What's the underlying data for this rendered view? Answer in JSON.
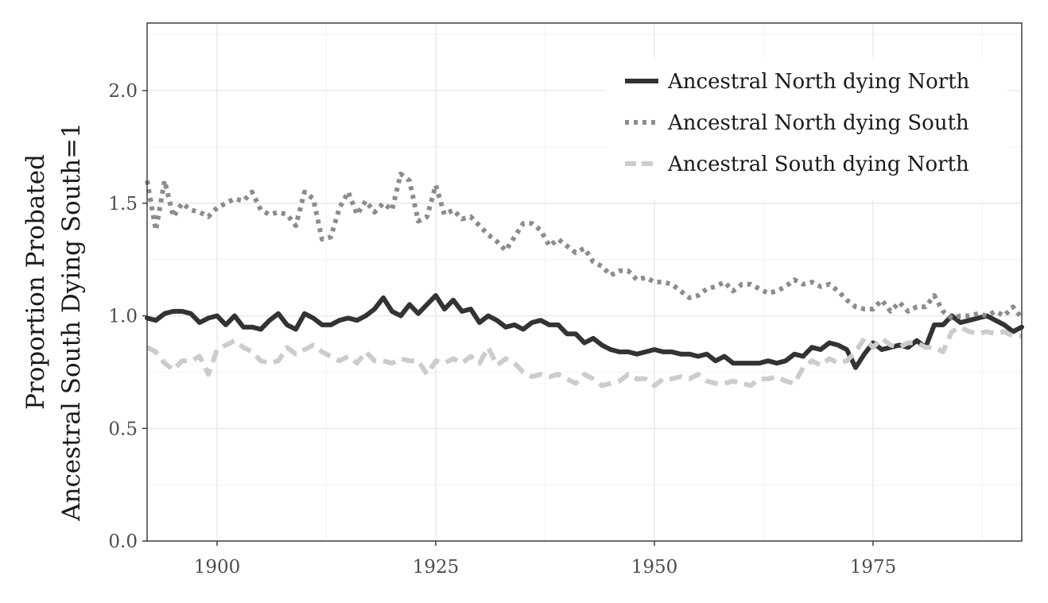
{
  "chart_data": {
    "type": "line",
    "title": "",
    "xlabel": "",
    "ylabel_lines": [
      "Proportion Probated",
      "Ancestral South Dying South=1"
    ],
    "xlim": [
      1892,
      1992
    ],
    "ylim": [
      0,
      2.3
    ],
    "x_ticks": [
      1900,
      1925,
      1950,
      1975
    ],
    "x_tick_labels": [
      "1900",
      "1925",
      "1950",
      "1975"
    ],
    "y_ticks": [
      0,
      0.5,
      1,
      1.5,
      2
    ],
    "y_tick_labels": [
      "0.0",
      "0.5",
      "1.0",
      "1.5",
      "2.0"
    ],
    "grid": true,
    "legend_position": "top-right",
    "series": [
      {
        "name": "Ancestral North dying North",
        "color": "#333333",
        "dash": "solid",
        "points": [
          [
            1892,
            0.99
          ],
          [
            1893,
            0.98
          ],
          [
            1894,
            1.01
          ],
          [
            1895,
            1.02
          ],
          [
            1896,
            1.02
          ],
          [
            1897,
            1.01
          ],
          [
            1898,
            0.97
          ],
          [
            1899,
            0.99
          ],
          [
            1900,
            1.0
          ],
          [
            1901,
            0.96
          ],
          [
            1902,
            1.0
          ],
          [
            1903,
            0.95
          ],
          [
            1904,
            0.95
          ],
          [
            1905,
            0.94
          ],
          [
            1906,
            0.98
          ],
          [
            1907,
            1.01
          ],
          [
            1908,
            0.96
          ],
          [
            1909,
            0.94
          ],
          [
            1910,
            1.01
          ],
          [
            1911,
            0.99
          ],
          [
            1912,
            0.96
          ],
          [
            1913,
            0.96
          ],
          [
            1914,
            0.98
          ],
          [
            1915,
            0.99
          ],
          [
            1916,
            0.98
          ],
          [
            1917,
            1.0
          ],
          [
            1918,
            1.03
          ],
          [
            1919,
            1.08
          ],
          [
            1920,
            1.02
          ],
          [
            1921,
            1.0
          ],
          [
            1922,
            1.05
          ],
          [
            1923,
            1.01
          ],
          [
            1924,
            1.05
          ],
          [
            1925,
            1.09
          ],
          [
            1926,
            1.03
          ],
          [
            1927,
            1.07
          ],
          [
            1928,
            1.02
          ],
          [
            1929,
            1.03
          ],
          [
            1930,
            0.97
          ],
          [
            1931,
            1.0
          ],
          [
            1932,
            0.98
          ],
          [
            1933,
            0.95
          ],
          [
            1934,
            0.96
          ],
          [
            1935,
            0.94
          ],
          [
            1936,
            0.97
          ],
          [
            1937,
            0.98
          ],
          [
            1938,
            0.96
          ],
          [
            1939,
            0.96
          ],
          [
            1940,
            0.92
          ],
          [
            1941,
            0.92
          ],
          [
            1942,
            0.88
          ],
          [
            1943,
            0.9
          ],
          [
            1944,
            0.87
          ],
          [
            1945,
            0.85
          ],
          [
            1946,
            0.84
          ],
          [
            1947,
            0.84
          ],
          [
            1948,
            0.83
          ],
          [
            1949,
            0.84
          ],
          [
            1950,
            0.85
          ],
          [
            1951,
            0.84
          ],
          [
            1952,
            0.84
          ],
          [
            1953,
            0.83
          ],
          [
            1954,
            0.83
          ],
          [
            1955,
            0.82
          ],
          [
            1956,
            0.83
          ],
          [
            1957,
            0.8
          ],
          [
            1958,
            0.82
          ],
          [
            1959,
            0.79
          ],
          [
            1960,
            0.79
          ],
          [
            1961,
            0.79
          ],
          [
            1962,
            0.79
          ],
          [
            1963,
            0.8
          ],
          [
            1964,
            0.79
          ],
          [
            1965,
            0.8
          ],
          [
            1966,
            0.83
          ],
          [
            1967,
            0.82
          ],
          [
            1968,
            0.86
          ],
          [
            1969,
            0.85
          ],
          [
            1970,
            0.88
          ],
          [
            1971,
            0.87
          ],
          [
            1972,
            0.85
          ],
          [
            1973,
            0.77
          ],
          [
            1974,
            0.83
          ],
          [
            1975,
            0.88
          ],
          [
            1976,
            0.85
          ],
          [
            1977,
            0.86
          ],
          [
            1978,
            0.87
          ],
          [
            1979,
            0.86
          ],
          [
            1980,
            0.89
          ],
          [
            1981,
            0.86
          ],
          [
            1982,
            0.96
          ],
          [
            1983,
            0.96
          ],
          [
            1984,
            1.0
          ],
          [
            1985,
            0.97
          ],
          [
            1986,
            0.98
          ],
          [
            1987,
            0.99
          ],
          [
            1988,
            1.0
          ],
          [
            1989,
            0.98
          ],
          [
            1990,
            0.96
          ],
          [
            1991,
            0.93
          ],
          [
            1992,
            0.95
          ]
        ]
      },
      {
        "name": "Ancestral North dying South",
        "color": "#8c8c8c",
        "dash": "dotted",
        "points": [
          [
            1892,
            1.6
          ],
          [
            1893,
            1.38
          ],
          [
            1894,
            1.6
          ],
          [
            1895,
            1.44
          ],
          [
            1896,
            1.5
          ],
          [
            1897,
            1.47
          ],
          [
            1898,
            1.46
          ],
          [
            1899,
            1.44
          ],
          [
            1900,
            1.48
          ],
          [
            1901,
            1.5
          ],
          [
            1902,
            1.52
          ],
          [
            1903,
            1.51
          ],
          [
            1904,
            1.55
          ],
          [
            1905,
            1.47
          ],
          [
            1906,
            1.45
          ],
          [
            1907,
            1.46
          ],
          [
            1908,
            1.45
          ],
          [
            1909,
            1.4
          ],
          [
            1910,
            1.55
          ],
          [
            1911,
            1.52
          ],
          [
            1912,
            1.34
          ],
          [
            1913,
            1.35
          ],
          [
            1914,
            1.48
          ],
          [
            1915,
            1.55
          ],
          [
            1916,
            1.45
          ],
          [
            1917,
            1.51
          ],
          [
            1918,
            1.46
          ],
          [
            1919,
            1.5
          ],
          [
            1920,
            1.47
          ],
          [
            1921,
            1.63
          ],
          [
            1922,
            1.6
          ],
          [
            1923,
            1.42
          ],
          [
            1924,
            1.44
          ],
          [
            1925,
            1.58
          ],
          [
            1926,
            1.45
          ],
          [
            1927,
            1.47
          ],
          [
            1928,
            1.43
          ],
          [
            1929,
            1.44
          ],
          [
            1930,
            1.4
          ],
          [
            1931,
            1.36
          ],
          [
            1932,
            1.33
          ],
          [
            1933,
            1.29
          ],
          [
            1934,
            1.35
          ],
          [
            1935,
            1.41
          ],
          [
            1936,
            1.41
          ],
          [
            1937,
            1.38
          ],
          [
            1938,
            1.31
          ],
          [
            1939,
            1.34
          ],
          [
            1940,
            1.31
          ],
          [
            1941,
            1.28
          ],
          [
            1942,
            1.3
          ],
          [
            1943,
            1.24
          ],
          [
            1944,
            1.22
          ],
          [
            1945,
            1.18
          ],
          [
            1946,
            1.2
          ],
          [
            1947,
            1.2
          ],
          [
            1948,
            1.16
          ],
          [
            1949,
            1.17
          ],
          [
            1950,
            1.15
          ],
          [
            1951,
            1.15
          ],
          [
            1952,
            1.14
          ],
          [
            1953,
            1.11
          ],
          [
            1954,
            1.08
          ],
          [
            1955,
            1.09
          ],
          [
            1956,
            1.12
          ],
          [
            1957,
            1.13
          ],
          [
            1958,
            1.15
          ],
          [
            1959,
            1.11
          ],
          [
            1960,
            1.14
          ],
          [
            1961,
            1.14
          ],
          [
            1962,
            1.12
          ],
          [
            1963,
            1.1
          ],
          [
            1964,
            1.11
          ],
          [
            1965,
            1.13
          ],
          [
            1966,
            1.16
          ],
          [
            1967,
            1.14
          ],
          [
            1968,
            1.15
          ],
          [
            1969,
            1.13
          ],
          [
            1970,
            1.14
          ],
          [
            1971,
            1.11
          ],
          [
            1972,
            1.07
          ],
          [
            1973,
            1.04
          ],
          [
            1974,
            1.03
          ],
          [
            1975,
            1.03
          ],
          [
            1976,
            1.07
          ],
          [
            1977,
            1.02
          ],
          [
            1978,
            1.06
          ],
          [
            1979,
            1.02
          ],
          [
            1980,
            1.04
          ],
          [
            1981,
            1.04
          ],
          [
            1982,
            1.09
          ],
          [
            1983,
            1.02
          ],
          [
            1984,
            0.99
          ],
          [
            1985,
            1.0
          ],
          [
            1986,
            1.0
          ],
          [
            1987,
            1.01
          ],
          [
            1988,
            1.0
          ],
          [
            1989,
            1.02
          ],
          [
            1990,
            1.0
          ],
          [
            1991,
            1.04
          ],
          [
            1992,
            0.99
          ]
        ]
      },
      {
        "name": "Ancestral South dying North",
        "color": "#cccccc",
        "dash": "dashed",
        "points": [
          [
            1892,
            0.86
          ],
          [
            1893,
            0.84
          ],
          [
            1894,
            0.79
          ],
          [
            1895,
            0.76
          ],
          [
            1896,
            0.8
          ],
          [
            1897,
            0.8
          ],
          [
            1898,
            0.82
          ],
          [
            1899,
            0.74
          ],
          [
            1900,
            0.85
          ],
          [
            1901,
            0.87
          ],
          [
            1902,
            0.89
          ],
          [
            1903,
            0.86
          ],
          [
            1904,
            0.84
          ],
          [
            1905,
            0.8
          ],
          [
            1906,
            0.79
          ],
          [
            1907,
            0.8
          ],
          [
            1908,
            0.86
          ],
          [
            1909,
            0.83
          ],
          [
            1910,
            0.85
          ],
          [
            1911,
            0.87
          ],
          [
            1912,
            0.84
          ],
          [
            1913,
            0.82
          ],
          [
            1914,
            0.8
          ],
          [
            1915,
            0.82
          ],
          [
            1916,
            0.79
          ],
          [
            1917,
            0.84
          ],
          [
            1918,
            0.8
          ],
          [
            1919,
            0.8
          ],
          [
            1920,
            0.79
          ],
          [
            1921,
            0.81
          ],
          [
            1922,
            0.8
          ],
          [
            1923,
            0.8
          ],
          [
            1924,
            0.74
          ],
          [
            1925,
            0.8
          ],
          [
            1926,
            0.79
          ],
          [
            1927,
            0.81
          ],
          [
            1928,
            0.79
          ],
          [
            1929,
            0.82
          ],
          [
            1930,
            0.79
          ],
          [
            1931,
            0.86
          ],
          [
            1932,
            0.78
          ],
          [
            1933,
            0.81
          ],
          [
            1934,
            0.79
          ],
          [
            1935,
            0.75
          ],
          [
            1936,
            0.73
          ],
          [
            1937,
            0.74
          ],
          [
            1938,
            0.73
          ],
          [
            1939,
            0.74
          ],
          [
            1940,
            0.72
          ],
          [
            1941,
            0.7
          ],
          [
            1942,
            0.74
          ],
          [
            1943,
            0.72
          ],
          [
            1944,
            0.69
          ],
          [
            1945,
            0.7
          ],
          [
            1946,
            0.71
          ],
          [
            1947,
            0.74
          ],
          [
            1948,
            0.72
          ],
          [
            1949,
            0.72
          ],
          [
            1950,
            0.69
          ],
          [
            1951,
            0.72
          ],
          [
            1952,
            0.72
          ],
          [
            1953,
            0.73
          ],
          [
            1954,
            0.72
          ],
          [
            1955,
            0.74
          ],
          [
            1956,
            0.71
          ],
          [
            1957,
            0.7
          ],
          [
            1958,
            0.7
          ],
          [
            1959,
            0.71
          ],
          [
            1960,
            0.7
          ],
          [
            1961,
            0.69
          ],
          [
            1962,
            0.72
          ],
          [
            1963,
            0.72
          ],
          [
            1964,
            0.73
          ],
          [
            1965,
            0.71
          ],
          [
            1966,
            0.7
          ],
          [
            1967,
            0.77
          ],
          [
            1968,
            0.8
          ],
          [
            1969,
            0.78
          ],
          [
            1970,
            0.81
          ],
          [
            1971,
            0.79
          ],
          [
            1972,
            0.8
          ],
          [
            1973,
            0.84
          ],
          [
            1974,
            0.9
          ],
          [
            1975,
            0.86
          ],
          [
            1976,
            0.9
          ],
          [
            1977,
            0.87
          ],
          [
            1978,
            0.86
          ],
          [
            1979,
            0.88
          ],
          [
            1980,
            0.88
          ],
          [
            1981,
            0.86
          ],
          [
            1982,
            0.86
          ],
          [
            1983,
            0.84
          ],
          [
            1984,
            0.93
          ],
          [
            1985,
            0.95
          ],
          [
            1986,
            0.93
          ],
          [
            1987,
            0.92
          ],
          [
            1988,
            0.93
          ],
          [
            1989,
            0.92
          ],
          [
            1990,
            0.93
          ],
          [
            1991,
            0.91
          ],
          [
            1992,
            0.91
          ]
        ]
      }
    ]
  }
}
